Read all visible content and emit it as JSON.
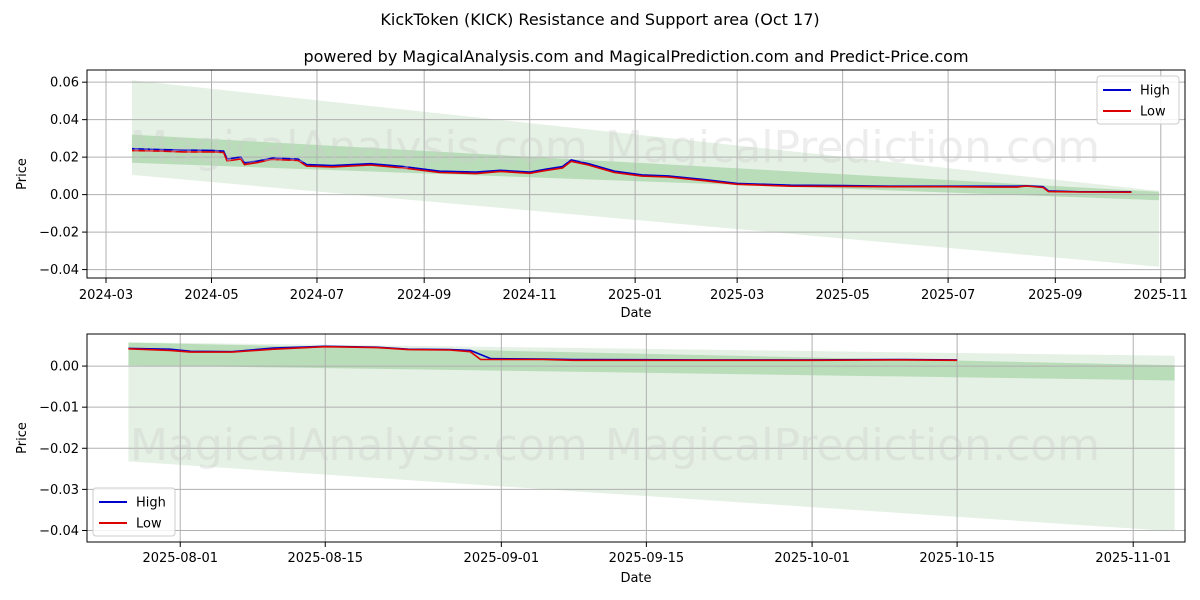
{
  "title": "KickToken (KICK) Resistance and Support area (Oct 17)",
  "subtitle": "powered by MagicalAnalysis.com and MagicalPrediction.com and Predict-Price.com",
  "watermarks": [
    "MagicalAnalysis.com",
    "MagicalPrediction.com"
  ],
  "colors": {
    "high": "#0000cc",
    "low": "#dd0000",
    "band_light": "#d8ebd8",
    "band_dark": "#9ccf9c",
    "grid": "#b0b0b0"
  },
  "chart_data": [
    {
      "type": "line",
      "title": "",
      "xlabel": "Date",
      "ylabel": "Price",
      "grid": true,
      "legend": "top-right",
      "x_domain": [
        "2024-02-19",
        "2025-11-15"
      ],
      "ylim": [
        -0.0445,
        0.0665
      ],
      "x_ticks": [
        "2024-03",
        "2024-05",
        "2024-07",
        "2024-09",
        "2024-11",
        "2025-01",
        "2025-03",
        "2025-05",
        "2025-07",
        "2025-09",
        "2025-11"
      ],
      "x_tick_dates": [
        "2024-03-01",
        "2024-05-01",
        "2024-07-01",
        "2024-09-01",
        "2024-11-01",
        "2025-01-01",
        "2025-03-01",
        "2025-05-01",
        "2025-07-01",
        "2025-09-01",
        "2025-11-01"
      ],
      "y_ticks": [
        "0.06",
        "0.04",
        "0.02",
        "0.00",
        "−0.02",
        "−0.04"
      ],
      "y_tick_values": [
        0.06,
        0.04,
        0.02,
        0.0,
        -0.02,
        -0.04
      ],
      "bands": [
        {
          "name": "outer",
          "start": {
            "x": "2024-03-16",
            "upper": 0.061,
            "lower": 0.0105
          },
          "end": {
            "x": "2025-10-31",
            "upper": 0.002,
            "lower": -0.0385
          }
        },
        {
          "name": "inner",
          "start": {
            "x": "2024-03-16",
            "upper": 0.032,
            "lower": 0.017
          },
          "end": {
            "x": "2025-10-31",
            "upper": 0.0015,
            "lower": -0.003
          }
        }
      ],
      "series": [
        {
          "name": "High",
          "points": [
            [
              "2024-03-16",
              0.0245
            ],
            [
              "2024-04-01",
              0.024
            ],
            [
              "2024-04-15",
              0.0238
            ],
            [
              "2024-05-01",
              0.0236
            ],
            [
              "2024-05-08",
              0.0232
            ],
            [
              "2024-05-10",
              0.019
            ],
            [
              "2024-05-18",
              0.02
            ],
            [
              "2024-05-20",
              0.017
            ],
            [
              "2024-05-28",
              0.018
            ],
            [
              "2024-06-05",
              0.0195
            ],
            [
              "2024-06-20",
              0.019
            ],
            [
              "2024-06-25",
              0.016
            ],
            [
              "2024-07-10",
              0.0155
            ],
            [
              "2024-08-01",
              0.0165
            ],
            [
              "2024-08-20",
              0.015
            ],
            [
              "2024-09-10",
              0.0125
            ],
            [
              "2024-10-01",
              0.012
            ],
            [
              "2024-10-15",
              0.013
            ],
            [
              "2024-11-01",
              0.012
            ],
            [
              "2024-11-10",
              0.0135
            ],
            [
              "2024-11-20",
              0.015
            ],
            [
              "2024-11-25",
              0.0185
            ],
            [
              "2024-12-05",
              0.0165
            ],
            [
              "2024-12-20",
              0.0125
            ],
            [
              "2025-01-05",
              0.0105
            ],
            [
              "2025-01-20",
              0.01
            ],
            [
              "2025-02-10",
              0.008
            ],
            [
              "2025-03-01",
              0.006
            ],
            [
              "2025-04-01",
              0.005
            ],
            [
              "2025-05-01",
              0.0048
            ],
            [
              "2025-06-01",
              0.0045
            ],
            [
              "2025-07-01",
              0.0045
            ],
            [
              "2025-07-29",
              0.0045
            ],
            [
              "2025-08-10",
              0.0045
            ],
            [
              "2025-08-15",
              0.0047
            ],
            [
              "2025-08-25",
              0.0042
            ],
            [
              "2025-08-28",
              0.002
            ],
            [
              "2025-09-15",
              0.0015
            ],
            [
              "2025-10-15",
              0.0015
            ]
          ]
        },
        {
          "name": "Low",
          "points": [
            [
              "2024-03-16",
              0.0235
            ],
            [
              "2024-04-01",
              0.0232
            ],
            [
              "2024-04-15",
              0.0228
            ],
            [
              "2024-05-01",
              0.0228
            ],
            [
              "2024-05-08",
              0.0225
            ],
            [
              "2024-05-10",
              0.018
            ],
            [
              "2024-05-18",
              0.019
            ],
            [
              "2024-05-20",
              0.016
            ],
            [
              "2024-05-28",
              0.0172
            ],
            [
              "2024-06-05",
              0.0188
            ],
            [
              "2024-06-20",
              0.0182
            ],
            [
              "2024-06-25",
              0.0152
            ],
            [
              "2024-07-10",
              0.0148
            ],
            [
              "2024-08-01",
              0.0158
            ],
            [
              "2024-08-20",
              0.0142
            ],
            [
              "2024-09-10",
              0.0118
            ],
            [
              "2024-10-01",
              0.0112
            ],
            [
              "2024-10-15",
              0.0124
            ],
            [
              "2024-11-01",
              0.0114
            ],
            [
              "2024-11-10",
              0.0128
            ],
            [
              "2024-11-20",
              0.0142
            ],
            [
              "2024-11-25",
              0.0178
            ],
            [
              "2024-12-05",
              0.0158
            ],
            [
              "2024-12-20",
              0.0118
            ],
            [
              "2025-01-05",
              0.0099
            ],
            [
              "2025-01-20",
              0.0094
            ],
            [
              "2025-02-10",
              0.0074
            ],
            [
              "2025-03-01",
              0.0055
            ],
            [
              "2025-04-01",
              0.0045
            ],
            [
              "2025-05-01",
              0.0044
            ],
            [
              "2025-06-01",
              0.0042
            ],
            [
              "2025-07-01",
              0.0042
            ],
            [
              "2025-07-29",
              0.004
            ],
            [
              "2025-08-10",
              0.004
            ],
            [
              "2025-08-15",
              0.0046
            ],
            [
              "2025-08-25",
              0.0038
            ],
            [
              "2025-08-28",
              0.0016
            ],
            [
              "2025-09-15",
              0.0014
            ],
            [
              "2025-10-15",
              0.0013
            ]
          ]
        }
      ]
    },
    {
      "type": "line",
      "title": "",
      "xlabel": "Date",
      "ylabel": "Price",
      "grid": true,
      "legend": "bottom-left",
      "x_domain": [
        "2025-07-23",
        "2025-11-06"
      ],
      "ylim": [
        -0.0428,
        0.0078
      ],
      "x_ticks": [
        "2025-08-01",
        "2025-08-15",
        "2025-09-01",
        "2025-09-15",
        "2025-10-01",
        "2025-10-15",
        "2025-11-01"
      ],
      "x_tick_dates": [
        "2025-08-01",
        "2025-08-15",
        "2025-09-01",
        "2025-09-15",
        "2025-10-01",
        "2025-10-15",
        "2025-11-01"
      ],
      "y_ticks": [
        "0.00",
        "−0.01",
        "−0.02",
        "−0.03",
        "−0.04"
      ],
      "y_tick_values": [
        0.0,
        -0.01,
        -0.02,
        -0.03,
        -0.04
      ],
      "bands": [
        {
          "name": "outer",
          "start": {
            "x": "2025-07-27",
            "upper": 0.0058,
            "lower": -0.0232
          },
          "end": {
            "x": "2025-11-05",
            "upper": 0.0025,
            "lower": -0.0402
          }
        },
        {
          "name": "inner",
          "start": {
            "x": "2025-07-27",
            "upper": 0.0057,
            "lower": 0.0002
          },
          "end": {
            "x": "2025-11-05",
            "upper": 0.0002,
            "lower": -0.0035
          }
        }
      ],
      "series": [
        {
          "name": "High",
          "points": [
            [
              "2025-07-27",
              0.0043
            ],
            [
              "2025-07-31",
              0.0041
            ],
            [
              "2025-08-02",
              0.0036
            ],
            [
              "2025-08-06",
              0.0035
            ],
            [
              "2025-08-10",
              0.0044
            ],
            [
              "2025-08-15",
              0.0048
            ],
            [
              "2025-08-20",
              0.0046
            ],
            [
              "2025-08-23",
              0.0041
            ],
            [
              "2025-08-27",
              0.004
            ],
            [
              "2025-08-29",
              0.0038
            ],
            [
              "2025-08-31",
              0.0018
            ],
            [
              "2025-09-05",
              0.0017
            ],
            [
              "2025-09-08",
              0.0016
            ],
            [
              "2025-09-20",
              0.0015
            ],
            [
              "2025-10-01",
              0.0015
            ],
            [
              "2025-10-10",
              0.0016
            ],
            [
              "2025-10-15",
              0.0015
            ]
          ]
        },
        {
          "name": "Low",
          "points": [
            [
              "2025-07-27",
              0.0042
            ],
            [
              "2025-07-31",
              0.0038
            ],
            [
              "2025-08-02",
              0.0034
            ],
            [
              "2025-08-06",
              0.0034
            ],
            [
              "2025-08-10",
              0.0041
            ],
            [
              "2025-08-15",
              0.0047
            ],
            [
              "2025-08-20",
              0.0045
            ],
            [
              "2025-08-23",
              0.004
            ],
            [
              "2025-08-27",
              0.0039
            ],
            [
              "2025-08-29",
              0.0035
            ],
            [
              "2025-08-30",
              0.0016
            ],
            [
              "2025-09-05",
              0.0016
            ],
            [
              "2025-09-08",
              0.0014
            ],
            [
              "2025-09-20",
              0.0014
            ],
            [
              "2025-10-01",
              0.0014
            ],
            [
              "2025-10-10",
              0.0015
            ],
            [
              "2025-10-15",
              0.0014
            ]
          ]
        }
      ]
    }
  ]
}
